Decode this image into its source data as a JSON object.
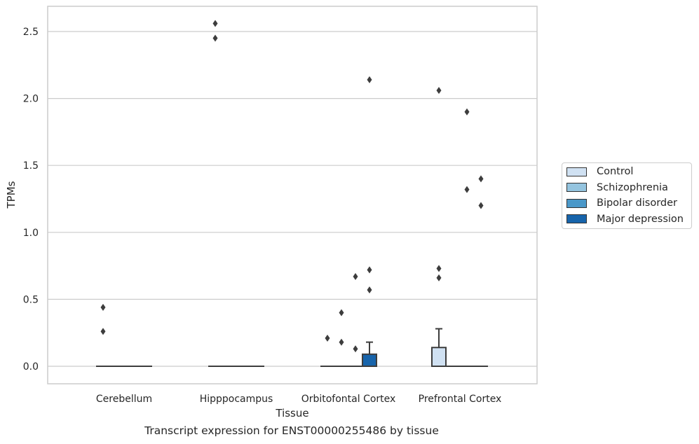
{
  "chart_data": {
    "type": "box",
    "xlabel": "Tissue",
    "ylabel": "TPMs",
    "caption": "Transcript expression for ENST00000255486 by tissue",
    "ylim": [
      -0.12,
      2.7
    ],
    "yticks": [
      "0.0",
      "0.5",
      "1.0",
      "1.5",
      "2.0",
      "2.5"
    ],
    "ytick_values": [
      0.0,
      0.5,
      1.0,
      1.5,
      2.0,
      2.5
    ],
    "grid": "horizontal",
    "legend_position": "right",
    "categories": [
      "Cerebellum",
      "Hipppocampus",
      "Orbitofontal Cortex",
      "Prefrontal Cortex"
    ],
    "series": [
      {
        "name": "Control",
        "color": "#d0e1f2",
        "boxes": [
          {
            "q1": 0,
            "median": 0,
            "q3": 0,
            "whislo": 0,
            "whishi": 0,
            "fliers": [
              0.44,
              0.26
            ]
          },
          {
            "q1": 0,
            "median": 0,
            "q3": 0,
            "whislo": 0,
            "whishi": 0,
            "fliers": [
              2.56,
              2.45
            ]
          },
          {
            "q1": 0,
            "median": 0,
            "q3": 0,
            "whislo": 0,
            "whishi": 0,
            "fliers": [
              0.21
            ]
          },
          {
            "q1": 0,
            "median": 0,
            "q3": 0.14,
            "whislo": 0,
            "whishi": 0.28,
            "fliers": [
              2.06,
              0.73,
              0.66
            ]
          }
        ]
      },
      {
        "name": "Schizophrenia",
        "color": "#94c4df",
        "boxes": [
          {
            "q1": 0,
            "median": 0,
            "q3": 0,
            "whislo": 0,
            "whishi": 0,
            "fliers": []
          },
          {
            "q1": 0,
            "median": 0,
            "q3": 0,
            "whislo": 0,
            "whishi": 0,
            "fliers": []
          },
          {
            "q1": 0,
            "median": 0,
            "q3": 0,
            "whislo": 0,
            "whishi": 0,
            "fliers": [
              0.4,
              0.18
            ]
          },
          {
            "q1": 0,
            "median": 0,
            "q3": 0,
            "whislo": 0,
            "whishi": 0,
            "fliers": []
          }
        ]
      },
      {
        "name": "Bipolar disorder",
        "color": "#4a98c9",
        "boxes": [
          {
            "q1": 0,
            "median": 0,
            "q3": 0,
            "whislo": 0,
            "whishi": 0,
            "fliers": []
          },
          {
            "q1": 0,
            "median": 0,
            "q3": 0,
            "whislo": 0,
            "whishi": 0,
            "fliers": []
          },
          {
            "q1": 0,
            "median": 0,
            "q3": 0,
            "whislo": 0,
            "whishi": 0,
            "fliers": [
              0.67,
              0.13
            ]
          },
          {
            "q1": 0,
            "median": 0,
            "q3": 0,
            "whislo": 0,
            "whishi": 0,
            "fliers": [
              1.9,
              1.32
            ]
          }
        ]
      },
      {
        "name": "Major depression",
        "color": "#1764ab",
        "boxes": [
          {
            "q1": 0,
            "median": 0,
            "q3": 0,
            "whislo": 0,
            "whishi": 0,
            "fliers": []
          },
          {
            "q1": 0,
            "median": 0,
            "q3": 0,
            "whislo": 0,
            "whishi": 0,
            "fliers": []
          },
          {
            "q1": 0,
            "median": 0,
            "q3": 0.09,
            "whislo": 0,
            "whishi": 0.18,
            "fliers": [
              2.14,
              0.72,
              0.57
            ]
          },
          {
            "q1": 0,
            "median": 0,
            "q3": 0,
            "whislo": 0,
            "whishi": 0,
            "fliers": [
              1.4,
              1.2
            ]
          }
        ]
      }
    ],
    "style": {
      "grid_color": "#cccccc",
      "frame_color": "#cccccc",
      "box_edge_color": "#3d3d3d",
      "flier_color": "#3d3d3d"
    }
  }
}
